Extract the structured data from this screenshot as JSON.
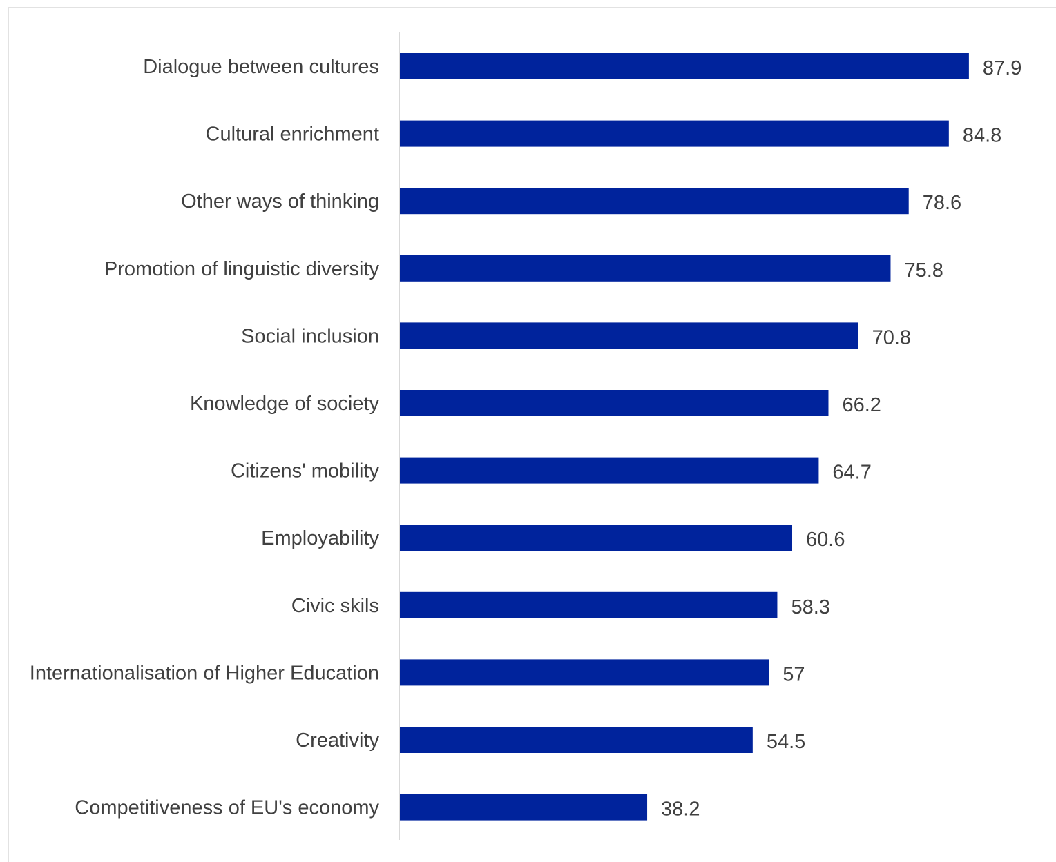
{
  "chart_data": {
    "type": "bar",
    "orientation": "horizontal",
    "title": "",
    "xlabel": "",
    "ylabel": "",
    "categories": [
      "Dialogue between cultures",
      "Cultural enrichment",
      "Other ways of thinking",
      "Promotion of linguistic diversity",
      "Social inclusion",
      "Knowledge of society",
      "Citizens' mobility",
      "Employability",
      "Civic skils",
      "Internationalisation of Higher Education",
      "Creativity",
      "Competitiveness of EU's economy"
    ],
    "values": [
      87.9,
      84.8,
      78.6,
      75.8,
      70.8,
      66.2,
      64.7,
      60.6,
      58.3,
      57,
      54.5,
      38.2
    ],
    "value_labels": [
      "87.9",
      "84.8",
      "78.6",
      "75.8",
      "70.8",
      "66.2",
      "64.7",
      "60.6",
      "58.3",
      "57",
      "54.5",
      "38.2"
    ],
    "xlim": [
      0,
      100
    ],
    "grid": false,
    "legend": "none",
    "bar_color": "#00239c",
    "label_color": "#404040",
    "axis_color": "#d9d9d9",
    "frame_color": "#d9d9d9"
  }
}
